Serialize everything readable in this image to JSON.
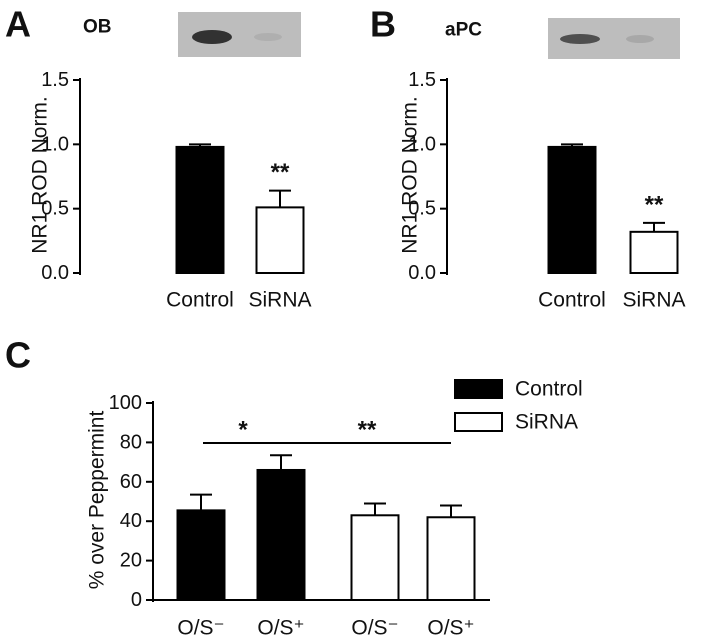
{
  "chart_data": [
    {
      "type": "bar",
      "panel_label": "A",
      "title": "OB",
      "y_label": "NR1 ROD Norm.",
      "categories": [
        "Control",
        "SiRNA"
      ],
      "values": [
        0.98,
        0.51
      ],
      "errors": [
        0.02,
        0.13
      ],
      "colors": [
        "#000000",
        "#ffffff"
      ],
      "ylim": [
        0,
        1.5
      ],
      "yticks": [
        {
          "value": 0,
          "label": "0.0"
        },
        0.5,
        {
          "value": 1,
          "label": "1.0"
        },
        1.5
      ],
      "annotations": [
        "**"
      ]
    },
    {
      "type": "bar",
      "panel_label": "B",
      "title": "aPC",
      "y_label": "NR1 ROD Norm.",
      "categories": [
        "Control",
        "SiRNA"
      ],
      "values": [
        0.98,
        0.32
      ],
      "errors": [
        0.02,
        0.07
      ],
      "colors": [
        "#000000",
        "#ffffff"
      ],
      "ylim": [
        0,
        1.5
      ],
      "yticks": [
        {
          "value": 0,
          "label": "0.0"
        },
        0.5,
        {
          "value": 1,
          "label": "1.0"
        },
        1.5
      ],
      "annotations": [
        "**"
      ]
    },
    {
      "type": "grouped_bar",
      "panel_label": "C",
      "y_label": "% over Peppermint",
      "categories": [
        "O/S⁻",
        "O/S⁺",
        "O/S⁻",
        "O/S⁺"
      ],
      "series": [
        {
          "name": "Control",
          "color": "#000000",
          "values": [
            45.5,
            66,
            null,
            null
          ],
          "errors": [
            8,
            7.5,
            null,
            null
          ]
        },
        {
          "name": "SiRNA",
          "color": "#ffffff",
          "values": [
            null,
            null,
            43,
            42
          ],
          "errors": [
            null,
            null,
            6,
            6
          ]
        }
      ],
      "ylim": [
        0,
        100
      ],
      "yticks": [
        0,
        20,
        40,
        60,
        80,
        100
      ],
      "annotations": [
        "*",
        "**"
      ],
      "legend": "top-right"
    }
  ]
}
